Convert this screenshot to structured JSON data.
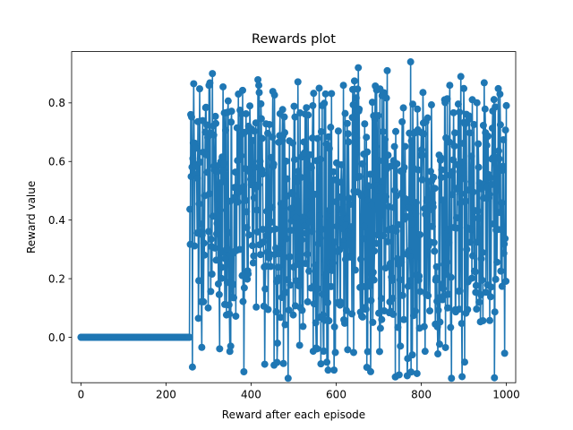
{
  "chart_data": {
    "type": "line",
    "title": "Rewards plot",
    "xlabel": "Reward after each episode",
    "ylabel": "Reward value",
    "xlim": [
      -22,
      1022
    ],
    "ylim": [
      -0.155,
      0.975
    ],
    "xticks": [
      0,
      200,
      400,
      600,
      800,
      1000
    ],
    "xtick_labels": [
      "0",
      "200",
      "400",
      "600",
      "800",
      "1000"
    ],
    "yticks": [
      0.0,
      0.2,
      0.4,
      0.6,
      0.8
    ],
    "ytick_labels": [
      "0.0",
      "0.2",
      "0.4",
      "0.6",
      "0.8"
    ],
    "grid": false,
    "legend": "none",
    "marker": "circle",
    "series": [
      {
        "color": "#1f77b4",
        "x_start": 0,
        "x_step": 1,
        "count": 1001,
        "zero_until_episode": 255,
        "active_from_episode": 256,
        "active_range": [
          -0.14,
          0.94
        ],
        "active_mean": 0.45,
        "notable_points": [
          {
            "x": 258,
            "y": 0.76
          },
          {
            "x": 309,
            "y": 0.9
          },
          {
            "x": 352,
            "y": -0.03
          },
          {
            "x": 370,
            "y": 0.83
          },
          {
            "x": 418,
            "y": 0.86
          },
          {
            "x": 462,
            "y": -0.02
          },
          {
            "x": 487,
            "y": -0.14
          },
          {
            "x": 560,
            "y": 0.85
          },
          {
            "x": 578,
            "y": -0.085
          },
          {
            "x": 617,
            "y": 0.86
          },
          {
            "x": 652,
            "y": 0.92
          },
          {
            "x": 720,
            "y": 0.91
          },
          {
            "x": 775,
            "y": 0.94
          },
          {
            "x": 779,
            "y": -0.06
          },
          {
            "x": 867,
            "y": 0.86
          },
          {
            "x": 893,
            "y": 0.89
          },
          {
            "x": 985,
            "y": 0.83
          }
        ]
      }
    ]
  }
}
